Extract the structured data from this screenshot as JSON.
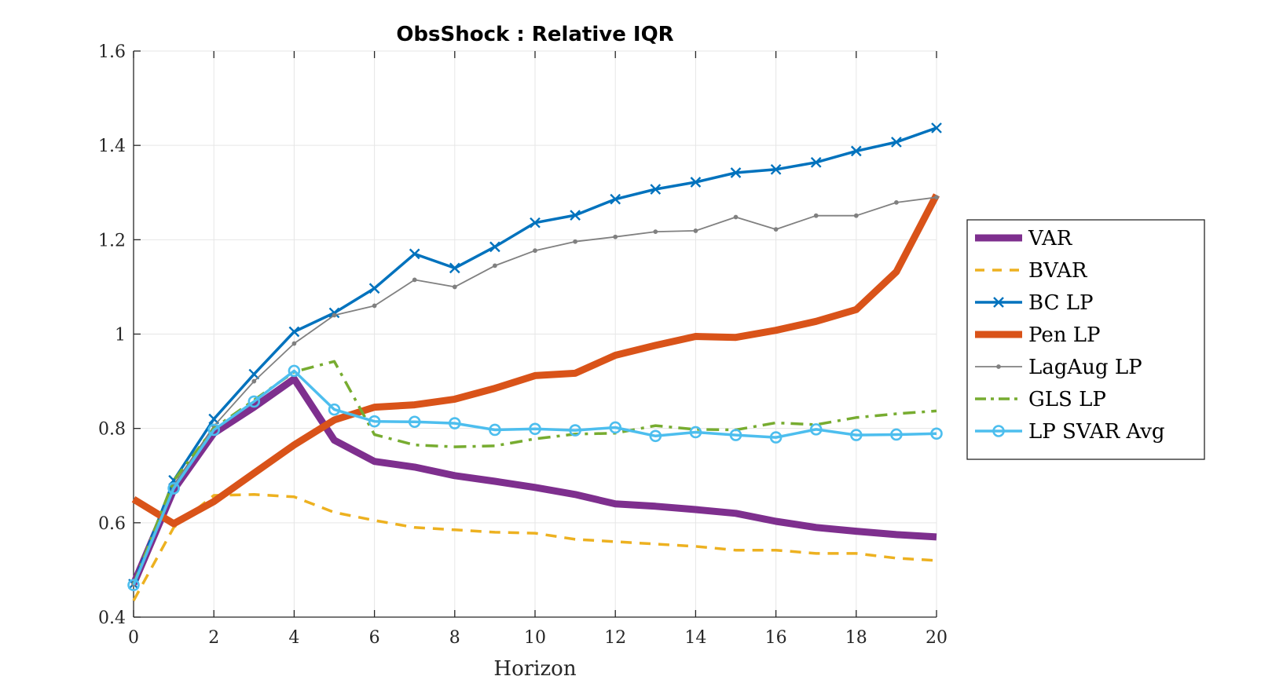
{
  "chart_data": {
    "type": "line",
    "title": "ObsShock : Relative IQR",
    "xlabel": "Horizon",
    "ylabel": "",
    "xlim": [
      0,
      20
    ],
    "ylim": [
      0.4,
      1.6
    ],
    "xticks": [
      0,
      2,
      4,
      6,
      8,
      10,
      12,
      14,
      16,
      18,
      20
    ],
    "yticks": [
      0.4,
      0.6,
      0.8,
      1,
      1.2,
      1.4,
      1.6
    ],
    "xtick_labels": [
      "0",
      "2",
      "4",
      "6",
      "8",
      "10",
      "12",
      "14",
      "16",
      "18",
      "20"
    ],
    "ytick_labels": [
      "0.4",
      "0.6",
      "0.8",
      "1",
      "1.2",
      "1.4",
      "1.6"
    ],
    "grid": true,
    "legend_position": "right",
    "x": [
      0,
      1,
      2,
      3,
      4,
      5,
      6,
      7,
      8,
      9,
      10,
      11,
      12,
      13,
      14,
      15,
      16,
      17,
      18,
      19,
      20
    ],
    "series": [
      {
        "name": "VAR",
        "color": "#7E2F8E",
        "style": "solid",
        "width": "thick",
        "marker": "none",
        "values": [
          0.47,
          0.67,
          0.79,
          0.845,
          0.905,
          0.775,
          0.73,
          0.718,
          0.7,
          0.688,
          0.675,
          0.66,
          0.64,
          0.635,
          0.628,
          0.62,
          0.603,
          0.59,
          0.582,
          0.575,
          0.57
        ]
      },
      {
        "name": "BVAR",
        "color": "#EDB120",
        "style": "dashed",
        "width": "normal",
        "marker": "none",
        "values": [
          0.435,
          0.59,
          0.658,
          0.66,
          0.655,
          0.622,
          0.605,
          0.59,
          0.585,
          0.58,
          0.578,
          0.565,
          0.56,
          0.555,
          0.55,
          0.542,
          0.542,
          0.535,
          0.535,
          0.525,
          0.52
        ]
      },
      {
        "name": "BC LP",
        "color": "#0072BD",
        "style": "solid",
        "width": "normal",
        "marker": "x",
        "values": [
          0.47,
          0.69,
          0.82,
          0.915,
          1.005,
          1.045,
          1.097,
          1.17,
          1.14,
          1.185,
          1.236,
          1.252,
          1.286,
          1.307,
          1.322,
          1.342,
          1.349,
          1.364,
          1.388,
          1.407,
          1.437
        ]
      },
      {
        "name": "Pen LP",
        "color": "#D95319",
        "style": "solid",
        "width": "thick",
        "marker": "none",
        "values": [
          0.65,
          0.598,
          0.645,
          0.705,
          0.765,
          0.818,
          0.845,
          0.85,
          0.862,
          0.885,
          0.912,
          0.917,
          0.955,
          0.976,
          0.995,
          0.993,
          1.008,
          1.027,
          1.052,
          1.132,
          1.295
        ]
      },
      {
        "name": "LagAug LP",
        "color": "#808080",
        "style": "solid",
        "width": "thin",
        "marker": "dot",
        "values": [
          0.47,
          0.68,
          0.805,
          0.9,
          0.98,
          1.04,
          1.06,
          1.115,
          1.1,
          1.145,
          1.177,
          1.196,
          1.206,
          1.217,
          1.219,
          1.248,
          1.222,
          1.251,
          1.251,
          1.279,
          1.29
        ]
      },
      {
        "name": "GLS LP",
        "color": "#77AC30",
        "style": "dashdot",
        "width": "normal",
        "marker": "none",
        "values": [
          0.47,
          0.69,
          0.8,
          0.86,
          0.92,
          0.942,
          0.787,
          0.765,
          0.761,
          0.763,
          0.778,
          0.788,
          0.79,
          0.806,
          0.798,
          0.797,
          0.812,
          0.808,
          0.823,
          0.831,
          0.837
        ]
      },
      {
        "name": "LP SVAR Avg",
        "color": "#4DBEEE",
        "style": "solid",
        "width": "normal",
        "marker": "o",
        "values": [
          0.468,
          0.673,
          0.797,
          0.857,
          0.922,
          0.84,
          0.815,
          0.814,
          0.811,
          0.797,
          0.799,
          0.796,
          0.802,
          0.784,
          0.792,
          0.786,
          0.781,
          0.798,
          0.786,
          0.787,
          0.789
        ]
      }
    ]
  }
}
